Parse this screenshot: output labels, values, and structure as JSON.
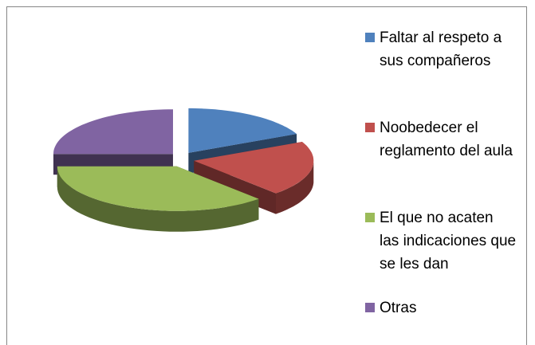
{
  "chart_data": {
    "type": "pie",
    "categories": [
      "Faltar al respeto a sus compañeros",
      "Noobedecer el reglamento del aula",
      "El que no acaten las indicaciones que se les dan",
      "Otras"
    ],
    "values": [
      18,
      20,
      37,
      25
    ],
    "colors": [
      "#4f81bd",
      "#c0504d",
      "#9bbb59",
      "#8064a2"
    ],
    "legend": "right"
  }
}
